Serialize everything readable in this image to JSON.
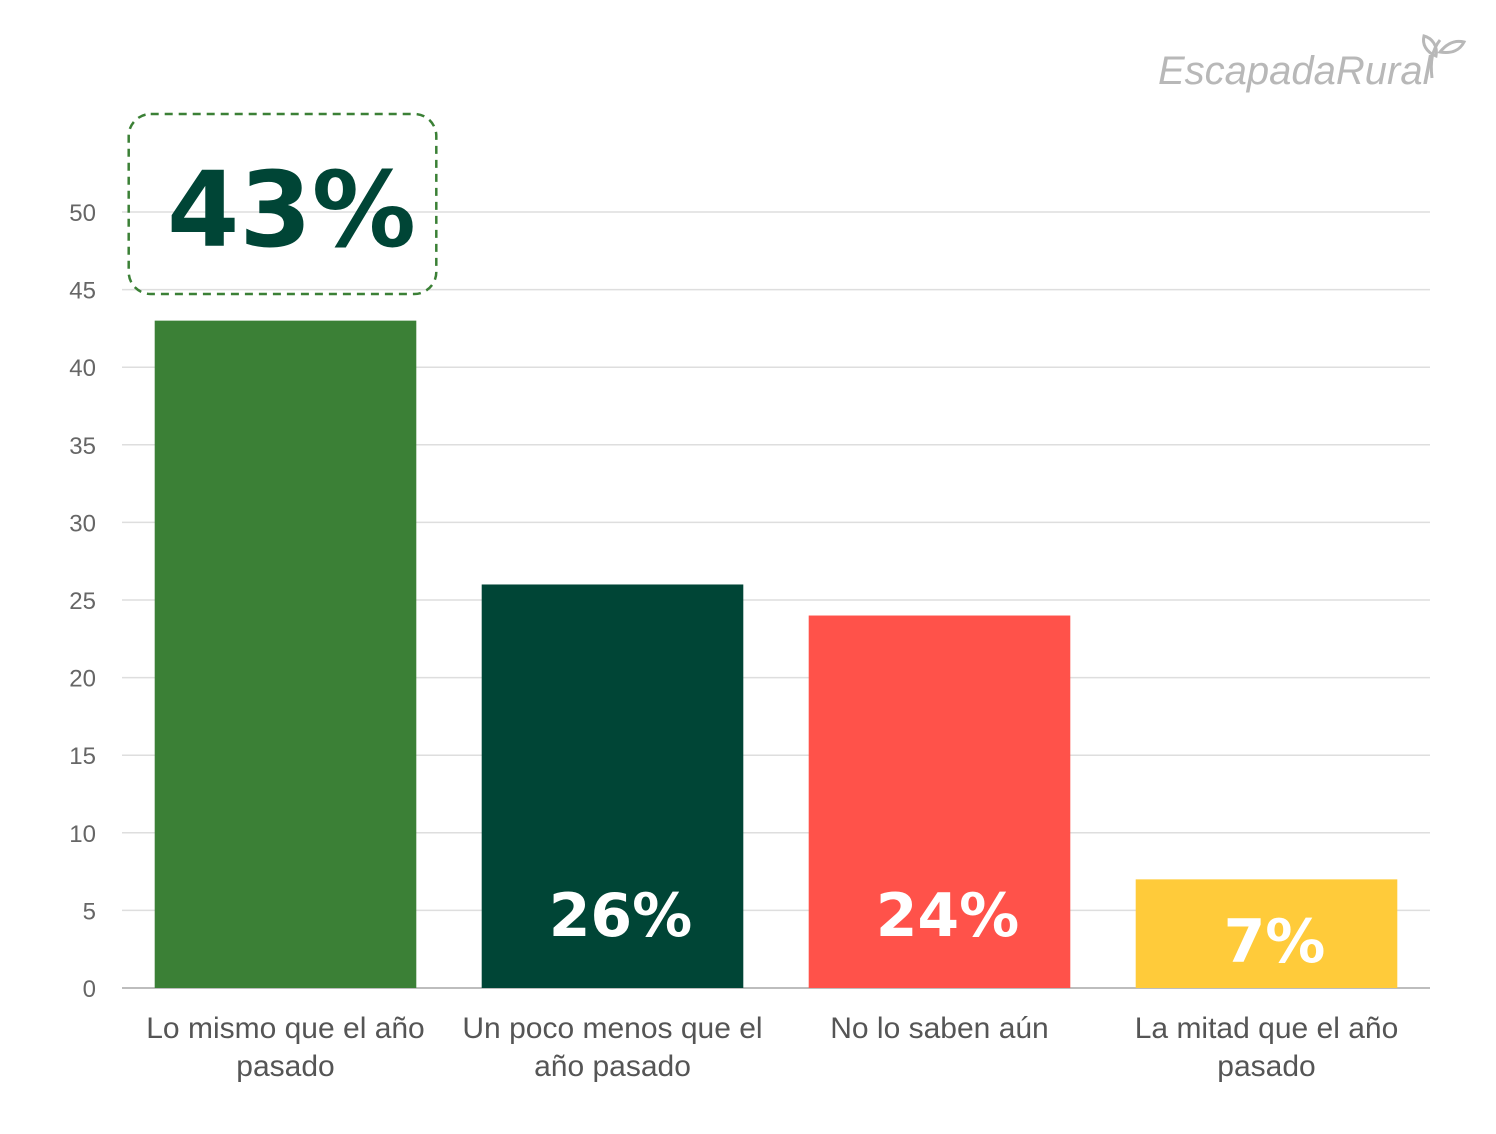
{
  "logo": {
    "text": "EscapadaRural"
  },
  "chart_data": {
    "type": "bar",
    "categories": [
      [
        "Lo mismo que el año",
        "pasado"
      ],
      [
        "Un poco menos que el",
        "año pasado"
      ],
      [
        "No lo saben aún"
      ],
      [
        "La mitad que el año",
        "pasado"
      ]
    ],
    "values": [
      43,
      26,
      24,
      7
    ],
    "data_labels": [
      "43%",
      "26%",
      "24%",
      "7%"
    ],
    "bar_colors": [
      "#3b8036",
      "#004536",
      "#ff524a",
      "#ffcb3a"
    ],
    "highlight_color": "#004536",
    "highlight_border_color": "#3b8036",
    "ylim": [
      0,
      50
    ],
    "yticks": [
      0,
      5,
      10,
      15,
      20,
      25,
      30,
      35,
      40,
      45,
      50
    ],
    "grid": true,
    "highlighted_index": 0,
    "title": "",
    "xlabel": "",
    "ylabel": ""
  }
}
